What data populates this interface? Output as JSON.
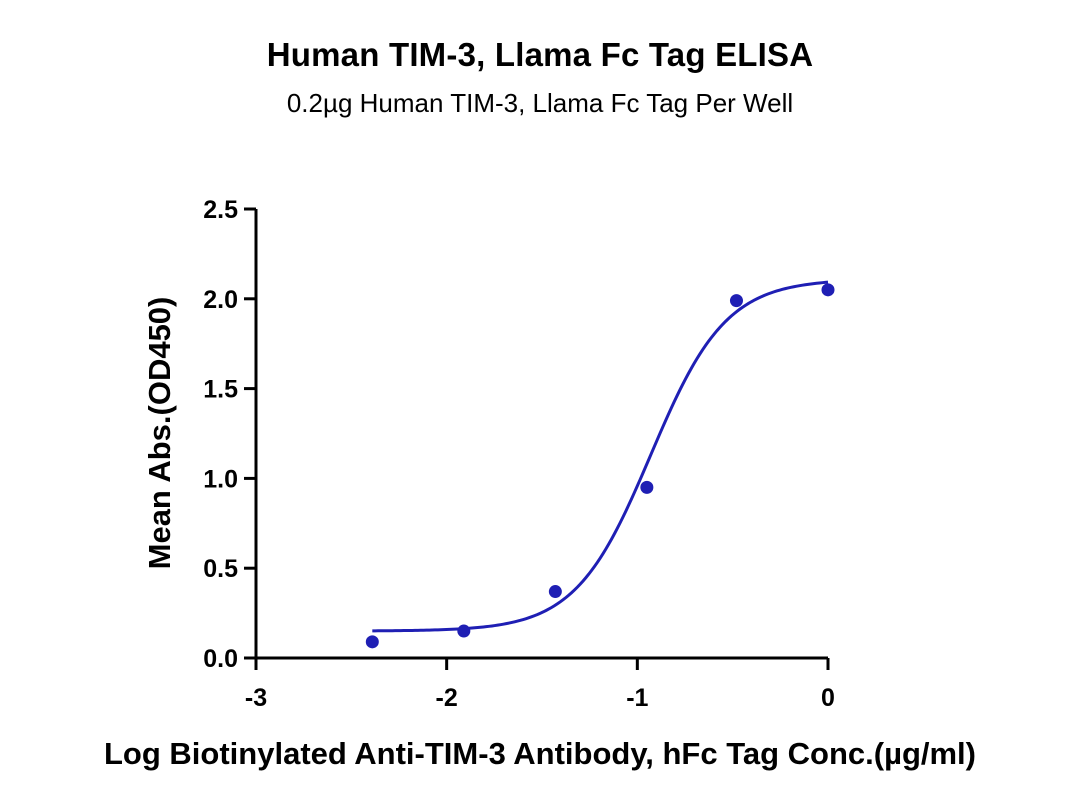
{
  "chart_data": {
    "type": "scatter",
    "title": "Human TIM-3, Llama Fc Tag ELISA",
    "subtitle": "0.2µg Human TIM-3, Llama Fc Tag Per Well",
    "xlabel": "Log Biotinylated Anti-TIM-3 Antibody, hFc Tag Conc.(µg/ml)",
    "ylabel": "Mean Abs.(OD450)",
    "xlim": [
      -3,
      0
    ],
    "ylim": [
      0,
      2.5
    ],
    "x_ticks": [
      "-3",
      "-2",
      "-1",
      "0"
    ],
    "y_ticks": [
      "0.0",
      "0.5",
      "1.0",
      "1.5",
      "2.0",
      "2.5"
    ],
    "grid": false,
    "series": [
      {
        "x": [
          -2.39,
          -1.91,
          -1.43,
          -0.95,
          -0.48,
          0.0
        ],
        "y": [
          0.09,
          0.15,
          0.37,
          0.95,
          1.99,
          2.05
        ],
        "color": "#1f1fb4"
      }
    ],
    "fit_curve": {
      "type": "4PL",
      "bottom": 0.15,
      "top": 2.11,
      "log_ec50": -0.93,
      "hill": 2.2,
      "x_range": [
        -2.39,
        0.0
      ],
      "color": "#1f1fb4"
    }
  }
}
